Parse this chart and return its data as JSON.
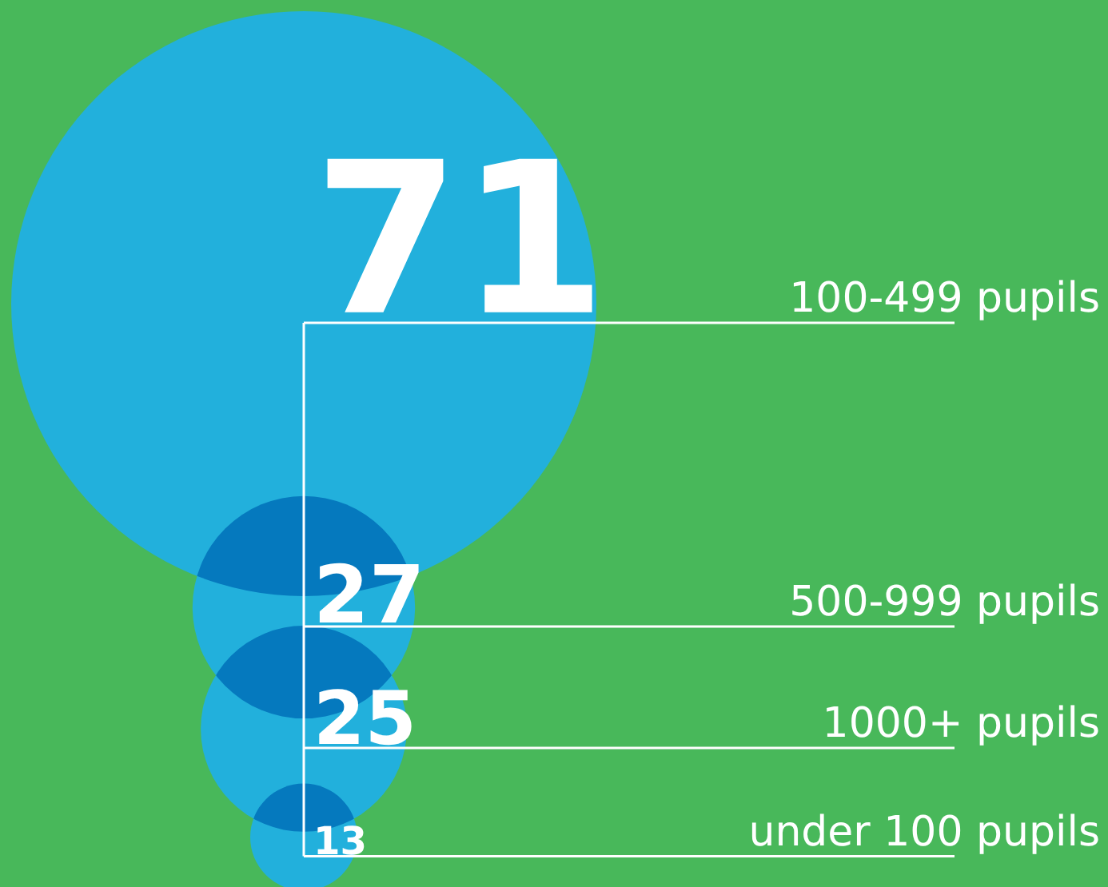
{
  "chart_data": {
    "type": "other",
    "categories": [
      "100-499 pupils",
      "500-999 pupils",
      "1000+ pupils",
      "under 100 pupils"
    ],
    "values": [
      71,
      27,
      25,
      13
    ],
    "color": "#22b0dc",
    "data_labels": true
  }
}
